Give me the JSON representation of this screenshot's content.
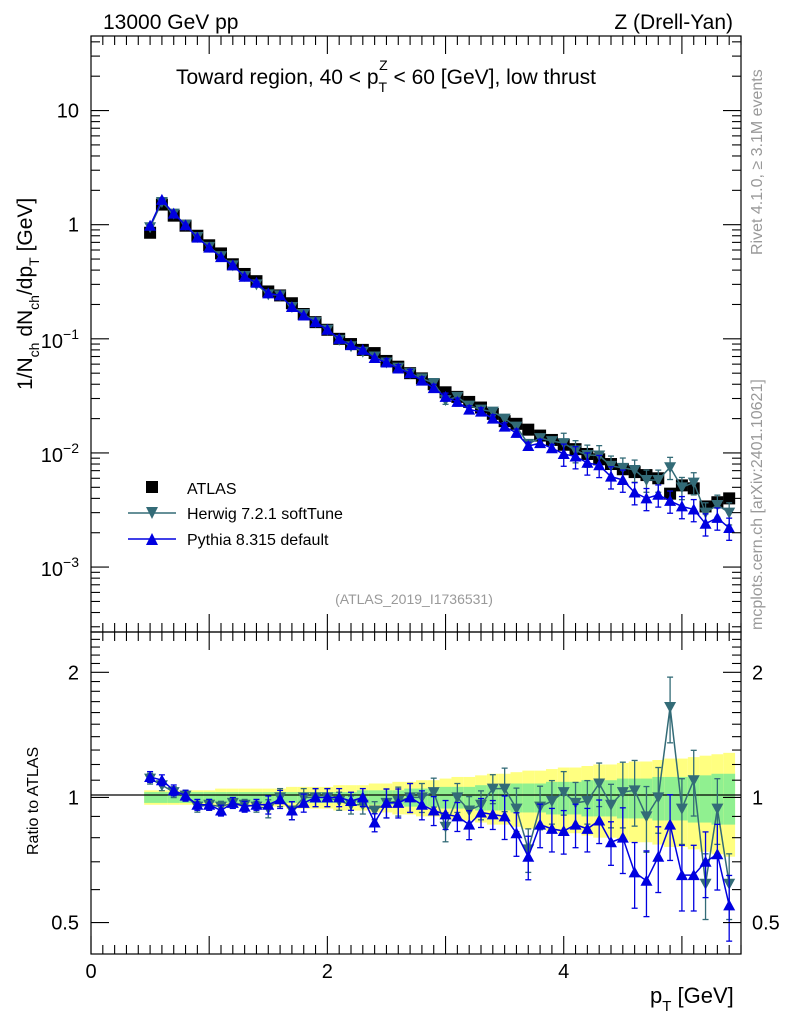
{
  "header": {
    "left": "13000 GeV pp",
    "right": "Z (Drell-Yan)",
    "title_main": "Toward region, 40 < p",
    "title_sup": "Z",
    "title_sub": "T",
    "title_end": " < 60 [GeV], low thrust"
  },
  "side": {
    "rivet": "Rivet 4.1.0, ≥ 3.1M events",
    "mcplots": "mcplots.cern.ch [arXiv:2401.10621]"
  },
  "analysis_id": "(ATLAS_2019_I1736531)",
  "axes": {
    "ylabel_main": "1/N",
    "ylabel_sub1": "ch",
    "ylabel_mid": " dN",
    "ylabel_sub2": "ch",
    "ylabel_mid2": "/dp",
    "ylabel_sub3": "T",
    "ylabel_end": " [GeV]",
    "ratio_ylabel": "Ratio to ATLAS",
    "xlabel_main": "p",
    "xlabel_sub": "T",
    "xlabel_end": " [GeV]",
    "top_ticks": [
      "10",
      "1"
    ],
    "top_exp_ticks": [
      {
        "base": "10",
        "exp": "−1"
      },
      {
        "base": "10",
        "exp": "−2"
      },
      {
        "base": "10",
        "exp": "−3"
      }
    ],
    "ratio_ticks": [
      "2",
      "1",
      "0.5"
    ],
    "x_ticks": [
      "0",
      "2",
      "4"
    ]
  },
  "legend": [
    {
      "label": "ATLAS",
      "color": "#000000",
      "marker": "square"
    },
    {
      "label": "Herwig 7.2.1 softTune",
      "color": "#336b77",
      "marker": "triangle-down"
    },
    {
      "label": "Pythia 8.315 default",
      "color": "#0000e0",
      "marker": "triangle-up"
    }
  ],
  "chart_data": [
    {
      "type": "scatter",
      "title": "Toward region, 40 < pT(Z) < 60 [GeV], low thrust",
      "xlabel": "pT [GeV]",
      "ylabel": "1/Nch dNch/dpT [GeV]",
      "yscale": "log",
      "xlim": [
        0,
        5.5
      ],
      "ylim": [
        0.00027,
        45
      ],
      "x": [
        0.5,
        0.6,
        0.7,
        0.8,
        0.9,
        1.0,
        1.1,
        1.2,
        1.3,
        1.4,
        1.5,
        1.6,
        1.7,
        1.8,
        1.9,
        2.0,
        2.1,
        2.2,
        2.3,
        2.4,
        2.5,
        2.6,
        2.7,
        2.8,
        2.9,
        3.0,
        3.1,
        3.2,
        3.3,
        3.4,
        3.5,
        3.6,
        3.7,
        3.8,
        3.9,
        4.0,
        4.1,
        4.2,
        4.3,
        4.4,
        4.5,
        4.6,
        4.7,
        4.8,
        4.9,
        5.0,
        5.1,
        5.2,
        5.3,
        5.4
      ],
      "series": [
        {
          "name": "ATLAS",
          "values": [
            0.85,
            1.5,
            1.2,
            0.98,
            0.8,
            0.66,
            0.56,
            0.45,
            0.37,
            0.32,
            0.26,
            0.24,
            0.205,
            0.165,
            0.14,
            0.12,
            0.1,
            0.09,
            0.08,
            0.075,
            0.064,
            0.057,
            0.05,
            0.045,
            0.04,
            0.034,
            0.031,
            0.028,
            0.025,
            0.022,
            0.019,
            0.018,
            0.016,
            0.0142,
            0.013,
            0.0118,
            0.0108,
            0.0098,
            0.0088,
            0.008,
            0.0072,
            0.0068,
            0.0064,
            0.006,
            0.0044,
            0.0052,
            0.0049,
            0.0034,
            0.0037,
            0.004
          ]
        },
        {
          "name": "Herwig 7.2.1 softTune",
          "values": [
            0.95,
            1.58,
            1.25,
            1.0,
            0.78,
            0.64,
            0.53,
            0.44,
            0.355,
            0.3,
            0.245,
            0.24,
            0.19,
            0.165,
            0.14,
            0.12,
            0.098,
            0.086,
            0.077,
            0.07,
            0.062,
            0.056,
            0.05,
            0.045,
            0.041,
            0.029,
            0.031,
            0.026,
            0.024,
            0.023,
            0.02,
            0.017,
            0.012,
            0.0135,
            0.0127,
            0.0122,
            0.0105,
            0.0096,
            0.0095,
            0.0077,
            0.0074,
            0.0071,
            0.0058,
            0.0058,
            0.0075,
            0.005,
            0.0055,
            0.003,
            0.0035,
            0.003
          ]
        },
        {
          "name": "Pythia 8.315 default",
          "values": [
            0.98,
            1.65,
            1.25,
            0.99,
            0.77,
            0.63,
            0.52,
            0.44,
            0.35,
            0.31,
            0.25,
            0.24,
            0.19,
            0.16,
            0.14,
            0.12,
            0.1,
            0.088,
            0.08,
            0.068,
            0.062,
            0.055,
            0.05,
            0.043,
            0.037,
            0.031,
            0.028,
            0.024,
            0.023,
            0.02,
            0.017,
            0.015,
            0.0115,
            0.0122,
            0.011,
            0.0098,
            0.0093,
            0.0082,
            0.0078,
            0.0062,
            0.0058,
            0.0045,
            0.004,
            0.0043,
            0.0038,
            0.0034,
            0.0032,
            0.0024,
            0.0027,
            0.0022
          ]
        }
      ]
    },
    {
      "type": "scatter",
      "title": "Ratio to ATLAS",
      "xlabel": "pT [GeV]",
      "ylabel": "Ratio to ATLAS",
      "yscale": "log",
      "xlim": [
        0,
        5.5
      ],
      "ylim": [
        0.42,
        2.5
      ],
      "x": [
        0.5,
        0.6,
        0.7,
        0.8,
        0.9,
        1.0,
        1.1,
        1.2,
        1.3,
        1.4,
        1.5,
        1.6,
        1.7,
        1.8,
        1.9,
        2.0,
        2.1,
        2.2,
        2.3,
        2.4,
        2.5,
        2.6,
        2.7,
        2.8,
        2.9,
        3.0,
        3.1,
        3.2,
        3.3,
        3.4,
        3.5,
        3.6,
        3.7,
        3.8,
        3.9,
        4.0,
        4.1,
        4.2,
        4.3,
        4.4,
        4.5,
        4.6,
        4.7,
        4.8,
        4.9,
        5.0,
        5.1,
        5.2,
        5.3,
        5.4
      ],
      "band_inner": [
        0.03,
        0.03,
        0.03,
        0.03,
        0.03,
        0.03,
        0.03,
        0.03,
        0.03,
        0.03,
        0.03,
        0.03,
        0.03,
        0.03,
        0.03,
        0.03,
        0.03,
        0.03,
        0.04,
        0.04,
        0.04,
        0.04,
        0.05,
        0.05,
        0.05,
        0.06,
        0.06,
        0.06,
        0.07,
        0.07,
        0.07,
        0.08,
        0.08,
        0.08,
        0.09,
        0.09,
        0.09,
        0.1,
        0.1,
        0.1,
        0.11,
        0.11,
        0.11,
        0.12,
        0.12,
        0.12,
        0.13,
        0.13,
        0.14,
        0.14
      ],
      "band_outer": [
        0.04,
        0.04,
        0.04,
        0.04,
        0.04,
        0.04,
        0.05,
        0.05,
        0.05,
        0.05,
        0.05,
        0.05,
        0.06,
        0.06,
        0.06,
        0.06,
        0.07,
        0.07,
        0.07,
        0.08,
        0.08,
        0.09,
        0.09,
        0.1,
        0.1,
        0.11,
        0.12,
        0.12,
        0.13,
        0.14,
        0.14,
        0.15,
        0.16,
        0.16,
        0.17,
        0.18,
        0.18,
        0.19,
        0.2,
        0.2,
        0.21,
        0.22,
        0.22,
        0.23,
        0.24,
        0.24,
        0.25,
        0.26,
        0.27,
        0.28
      ],
      "series": [
        {
          "name": "Herwig 7.2.1 softTune",
          "values": [
            1.11,
            1.07,
            1.03,
            1.01,
            0.95,
            0.96,
            0.95,
            0.97,
            0.96,
            0.95,
            0.94,
            1.0,
            0.93,
            1.0,
            1.0,
            1.0,
            0.98,
            0.96,
            0.96,
            0.93,
            0.97,
            0.98,
            1.0,
            1.0,
            1.03,
            0.85,
            1.0,
            0.93,
            0.96,
            1.05,
            1.05,
            0.94,
            0.75,
            0.95,
            0.98,
            1.03,
            0.97,
            0.98,
            1.08,
            0.96,
            1.03,
            1.04,
            0.9,
            1.0,
            1.65,
            0.94,
            1.1,
            0.62,
            0.94,
            0.62
          ]
        },
        {
          "name": "Pythia 8.315 default",
          "values": [
            1.12,
            1.1,
            1.04,
            1.01,
            0.96,
            0.96,
            0.93,
            0.97,
            0.95,
            0.96,
            0.96,
            0.99,
            0.93,
            0.97,
            1.0,
            1.0,
            1.0,
            0.98,
            1.0,
            0.87,
            0.97,
            0.97,
            1.0,
            0.96,
            0.93,
            0.91,
            0.9,
            0.86,
            0.92,
            0.91,
            0.9,
            0.82,
            0.72,
            0.86,
            0.84,
            0.83,
            0.86,
            0.84,
            0.88,
            0.78,
            0.8,
            0.66,
            0.63,
            0.72,
            0.86,
            0.65,
            0.65,
            0.7,
            0.73,
            0.55
          ]
        }
      ]
    }
  ]
}
